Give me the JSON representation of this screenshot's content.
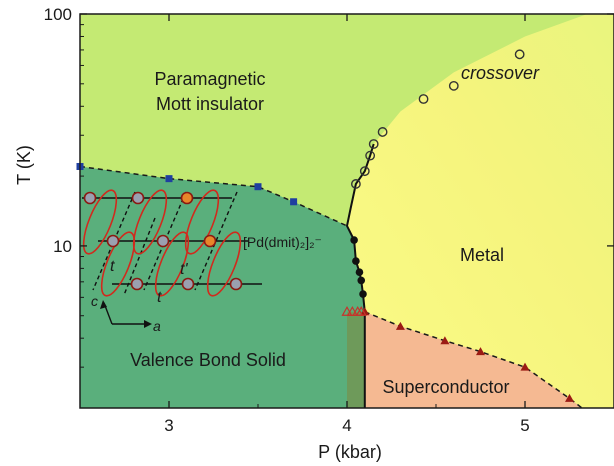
{
  "chart_data": {
    "type": "scatter",
    "xlabel": "P (kbar)",
    "ylabel": "T (K)",
    "xlim": [
      2.5,
      5.5
    ],
    "ylim": [
      2,
      100
    ],
    "y_scale": "log",
    "x_ticks": [
      3,
      4,
      5
    ],
    "y_ticks": [
      10,
      100
    ],
    "x_tick_labels": [
      "3",
      "4",
      "5"
    ],
    "y_tick_labels": [
      "10",
      "100"
    ],
    "regions": {
      "paramagnetic": {
        "line1": "Paramagnetic",
        "line2": "Mott insulator",
        "color": "#c4ea73"
      },
      "vbs": {
        "label": "Valence Bond Solid",
        "color": "#5aaf7c"
      },
      "metal": {
        "label": "Metal",
        "color": "#f7f680"
      },
      "superconductor": {
        "label": "Superconductor",
        "color": "#f5b992"
      },
      "crossover": {
        "label": "crossover"
      }
    },
    "inset": {
      "molecule_label": "[Pd(dmit)₂]₂⁻",
      "transfer_t": "t",
      "transfer_t_prime": "t'",
      "axis_c": "c",
      "axis_a": "a"
    },
    "series": [
      {
        "marker": "square",
        "color": "#1f3fa0",
        "x": [
          2.5,
          3.0,
          3.5,
          3.7
        ],
        "y": [
          22,
          19.5,
          18,
          15.5
        ]
      },
      {
        "marker": "filled-circle",
        "color": "#111111",
        "x": [
          4.04,
          4.05,
          4.07,
          4.08,
          4.09
        ],
        "y": [
          10.6,
          8.6,
          7.7,
          7.1,
          6.2
        ]
      },
      {
        "marker": "open-circle",
        "color": "#333333",
        "x": [
          4.05,
          4.1,
          4.13,
          4.15,
          4.2,
          4.43,
          4.6,
          4.97
        ],
        "y": [
          18.5,
          21,
          24.5,
          27.5,
          31,
          43,
          49,
          67
        ]
      },
      {
        "marker": "filled-triangle",
        "color": "#9b1b14",
        "x": [
          4.1,
          4.3,
          4.55,
          4.75,
          5.0,
          5.25
        ],
        "y": [
          5.2,
          4.5,
          3.9,
          3.5,
          3.0,
          2.2
        ]
      },
      {
        "marker": "open-triangle",
        "color": "#c8322b",
        "x": [
          4.0,
          4.03,
          4.06,
          4.08
        ],
        "y": [
          5.2,
          5.2,
          5.2,
          5.2
        ]
      }
    ]
  }
}
